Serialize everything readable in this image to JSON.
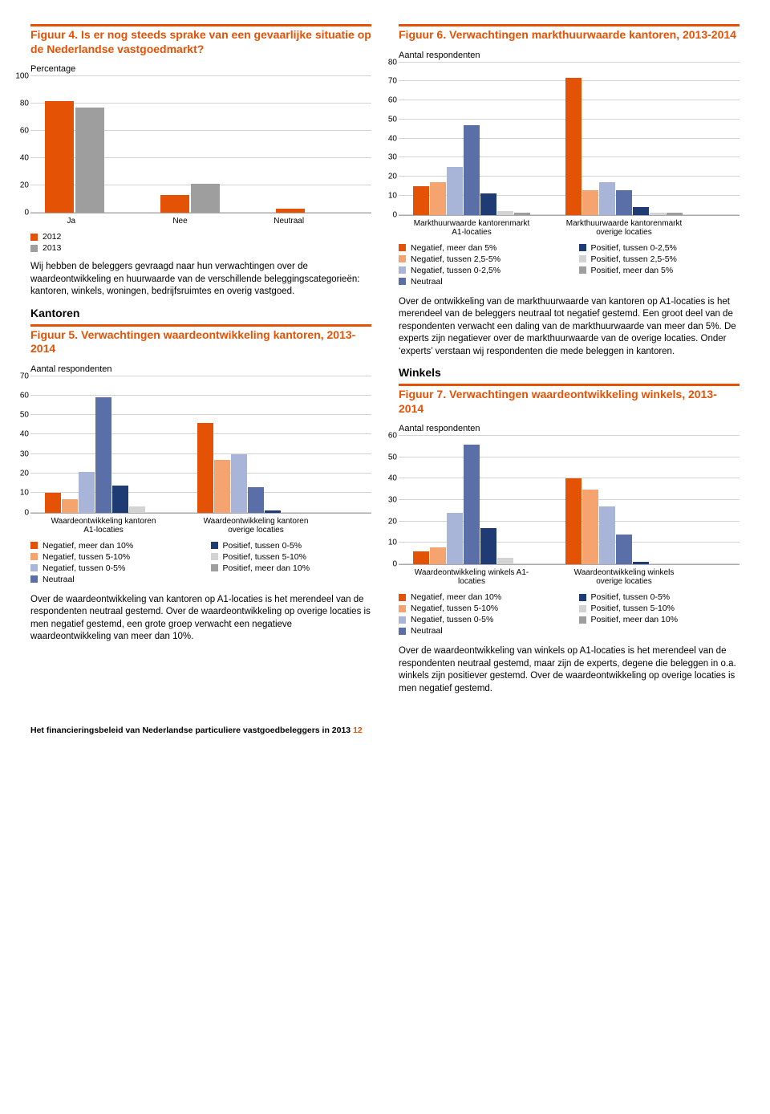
{
  "colors": {
    "orange": "#e35205",
    "lorange": "#f5a46f",
    "lblue": "#a8b4d8",
    "blue": "#5a6fa8",
    "dblue": "#1f3b73",
    "grey": "#9e9e9e",
    "lgrey": "#d3d3d3"
  },
  "fig4": {
    "title": "Figuur 4. Is er nog steeds sprake van een gevaarlijke situatie op de Nederlandse vastgoedmarkt?",
    "ylabel": "Percentage",
    "ymax": 100,
    "ystep": 20,
    "cats": [
      "Ja",
      "Nee",
      "Neutraal"
    ],
    "series": [
      {
        "label": "2012",
        "color": "#e35205",
        "vals": [
          82,
          13,
          3
        ]
      },
      {
        "label": "2013",
        "color": "#9e9e9e",
        "vals": [
          77,
          21,
          0
        ]
      }
    ],
    "body": "Wij hebben de beleggers gevraagd naar hun verwachtingen over de waardeontwikkeling en huurwaarde van de verschillende beleggingscategorieën: kantoren, winkels, woningen, bedrijfs­ruimtes en overig vastgoed.",
    "sec": "Kantoren"
  },
  "fig5": {
    "title": "Figuur 5. Verwachtingen waardeontwikkeling kantoren, 2013-2014",
    "ylabel": "Aantal respondenten",
    "ymax": 70,
    "ystep": 10,
    "cats": [
      "Waardeontwikkeling kantoren A1-locaties",
      "Waardeontwikkeling kantoren overige locaties"
    ],
    "colors": [
      "#e35205",
      "#f5a46f",
      "#a8b4d8",
      "#5a6fa8",
      "#1f3b73",
      "#d3d3d3",
      "#9e9e9e"
    ],
    "vals": [
      [
        10,
        7,
        21,
        59,
        14,
        3,
        0
      ],
      [
        46,
        27,
        30,
        13,
        1,
        0,
        0
      ]
    ],
    "legL": [
      "Negatief, meer dan 10%",
      "Negatief, tussen 5-10%",
      "Negatief, tussen 0-5%",
      "Neutraal"
    ],
    "legR": [
      "Positief, tussen 0-5%",
      "Positief, tussen 5-10%",
      "Positief, meer dan 10%"
    ],
    "body": "Over de waardeontwikkeling van kantoren op A1-locaties is het merendeel van de respondenten neutraal gestemd. Over de waardeontwikkeling op overige locaties is men negatief gestemd, een grote groep verwacht een negatieve waardeontwikkeling van meer dan 10%."
  },
  "fig6": {
    "title": "Figuur 6. Verwachtingen markthuurwaarde kantoren, 2013-2014",
    "ylabel": "Aantal respondenten",
    "ymax": 80,
    "ystep": 10,
    "cats": [
      "Markthuurwaarde kantoren­markt A1-locaties",
      "Markthuurwaarde kantoren­markt overige locaties"
    ],
    "colors": [
      "#e35205",
      "#f5a46f",
      "#a8b4d8",
      "#5a6fa8",
      "#1f3b73",
      "#d3d3d3",
      "#9e9e9e"
    ],
    "vals": [
      [
        15,
        17,
        25,
        47,
        11,
        2,
        1
      ],
      [
        72,
        13,
        17,
        13,
        4,
        1,
        1
      ]
    ],
    "legL": [
      "Negatief, meer dan 5%",
      "Negatief, tussen 2,5-5%",
      "Negatief, tussen 0-2,5%",
      "Neutraal"
    ],
    "legR": [
      "Positief, tussen 0-2,5%",
      "Positief, tussen 2,5-5%",
      "Positief, meer dan 5%"
    ],
    "body": "Over de ontwikkeling van de markthuurwaarde van kantoren op A1-locaties is het merendeel van de beleggers neutraal tot negatief gestemd. Een groot deel van de respondenten verwacht een daling van de markthuurwaarde van meer dan 5%. De experts zijn negatiever over de markthuurwaarde van de overige locaties. Onder ‘experts’ verstaan wij respondenten die mede beleggen in kantoren.",
    "sec": "Winkels"
  },
  "fig7": {
    "title": "Figuur 7. Verwachtingen waardeontwikkeling winkels, 2013-2014",
    "ylabel": "Aantal respondenten",
    "ymax": 60,
    "ystep": 10,
    "cats": [
      "Waardeontwikkeling winkels A1-locaties",
      "Waardeontwikkeling winkels overige locaties"
    ],
    "colors": [
      "#e35205",
      "#f5a46f",
      "#a8b4d8",
      "#5a6fa8",
      "#1f3b73",
      "#d3d3d3",
      "#9e9e9e"
    ],
    "vals": [
      [
        6,
        8,
        24,
        56,
        17,
        3,
        0
      ],
      [
        40,
        35,
        27,
        14,
        1,
        0,
        0
      ]
    ],
    "legL": [
      "Negatief, meer dan 10%",
      "Negatief, tussen 5-10%",
      "Negatief, tussen 0-5%",
      "Neutraal"
    ],
    "legR": [
      "Positief, tussen 0-5%",
      "Positief, tussen 5-10%",
      "Positief, meer dan 10%"
    ],
    "body": "Over de waardeontwikkeling van winkels op A1-locaties is het merendeel van de respondenten neutraal gestemd, maar zijn de experts, degene die beleggen in o.a. winkels zijn positiever gestemd. Over de waardeontwikkeling op overige locaties is men negatief gestemd."
  },
  "footer": {
    "text": "Het financieringsbeleid van Nederlandse particuliere vastgoedbeleggers in 2013",
    "page": "12"
  }
}
